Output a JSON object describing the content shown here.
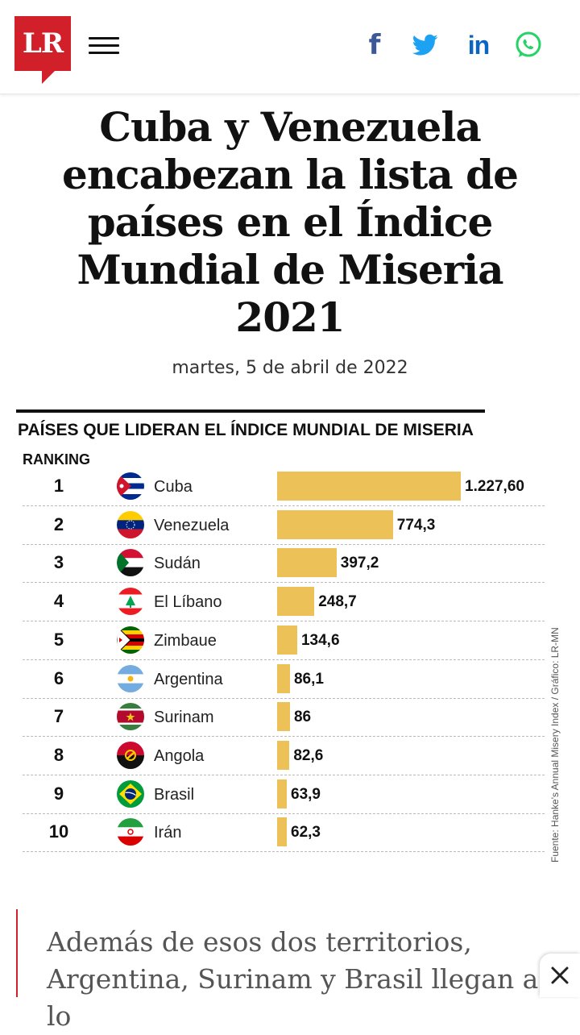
{
  "header": {
    "logo_text": "LR",
    "social": {
      "facebook_label": "f",
      "linkedin_label": "in"
    }
  },
  "article": {
    "title": "Cuba y Venezuela encabezan la lista de países en el Índice Mundial de Miseria 2021",
    "date": "martes, 5 de abril de 2022",
    "body_excerpt": "Además de esos dos territorios, Argentina, Surinam y Brasil llegan a lo"
  },
  "chart_data": {
    "type": "bar",
    "title": "PAÍSES QUE LIDERAN EL ÍNDICE MUNDIAL DE MISERIA",
    "column_label": "RANKING",
    "source": "Fuente: Hanke's Annual Misery Index / Gráfico: LR-MN",
    "ranks": [
      "1",
      "2",
      "3",
      "4",
      "5",
      "6",
      "7",
      "8",
      "9",
      "10"
    ],
    "categories": [
      "Cuba",
      "Venezuela",
      "Sudán",
      "El Líbano",
      "Zimbaue",
      "Argentina",
      "Surinam",
      "Angola",
      "Brasil",
      "Irán"
    ],
    "values": [
      1227.6,
      774.3,
      397.2,
      248.7,
      134.6,
      86.1,
      86,
      82.6,
      63.9,
      62.3
    ],
    "value_labels": [
      "1.227,60",
      "774,3",
      "397,2",
      "248,7",
      "134,6",
      "86,1",
      "86",
      "82,6",
      "63,9",
      "62,3"
    ],
    "bar_color": "#ecc157",
    "orientation": "horizontal"
  },
  "colors": {
    "brand_red": "#d2202a",
    "facebook": "#3b5998",
    "twitter": "#1da1f2",
    "linkedin": "#0a66c2",
    "whatsapp": "#25d366"
  }
}
